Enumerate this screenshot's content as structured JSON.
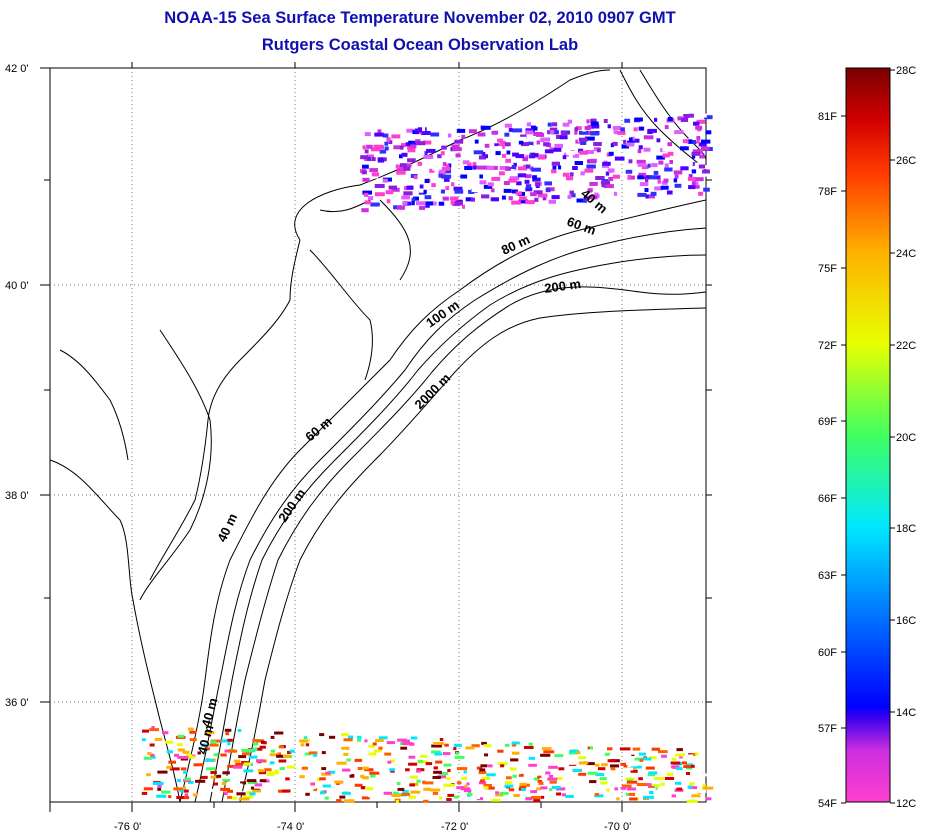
{
  "title": {
    "line1": "NOAA-15 Sea Surface Temperature November 02, 2010 0907 GMT",
    "line2": "Rutgers Coastal Ocean Observation Lab"
  },
  "map": {
    "lat_labels": [
      "42 0'",
      "40 0'",
      "38 0'",
      "36 0'"
    ],
    "lon_labels": [
      "-76 0'",
      "-74 0'",
      "-72 0'",
      "-70 0'"
    ],
    "contour_labels": [
      "40 m",
      "60 m",
      "80 m",
      "200 m",
      "100 m",
      "60 m",
      "2000 m",
      "40 m",
      "200 m",
      "40 m",
      "40 m"
    ],
    "colors": {
      "coast": "#000000",
      "grid": "#777777"
    }
  },
  "colorbar": {
    "f_labels": [
      "81F",
      "78F",
      "75F",
      "72F",
      "69F",
      "66F",
      "63F",
      "60F",
      "57F",
      "54F"
    ],
    "c_labels": [
      "28C",
      "26C",
      "24C",
      "22C",
      "20C",
      "18C",
      "16C",
      "14C",
      "12C"
    ],
    "stops": [
      "#ff3fd0",
      "#9a1fe0",
      "#0000ff",
      "#0070ff",
      "#00e8ff",
      "#40ff60",
      "#e8ff00",
      "#ffb000",
      "#ff3800",
      "#d00000",
      "#7a0000"
    ]
  }
}
